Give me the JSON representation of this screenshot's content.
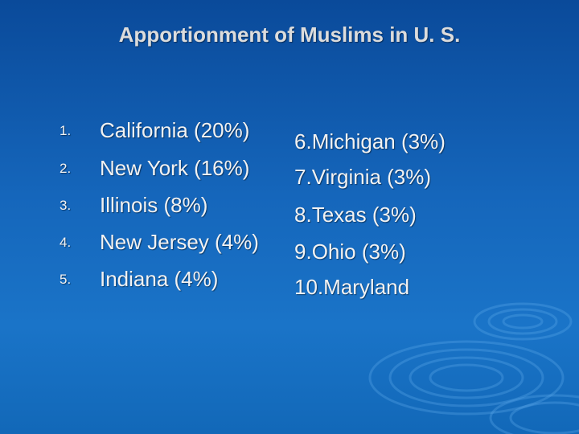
{
  "title": "Apportionment of Muslims in U. S.",
  "left_list": [
    {
      "number": "1.",
      "text": "California (20%)"
    },
    {
      "number": "2.",
      "text": "New York (16%)"
    },
    {
      "number": "3.",
      "text": "Illinois (8%)"
    },
    {
      "number": "4.",
      "text": "New Jersey (4%)"
    },
    {
      "number": "5.",
      "text": "Indiana (4%)"
    }
  ],
  "right_list": [
    {
      "number": "6.",
      "text": "Michigan (3%)"
    },
    {
      "number": "7.",
      "text": "Virginia (3%)"
    },
    {
      "number": "8.",
      "text": "Texas (3%)"
    },
    {
      "number": "9.",
      "text": "Ohio (3%)"
    },
    {
      "number": "10.",
      "text": "Maryland"
    }
  ]
}
